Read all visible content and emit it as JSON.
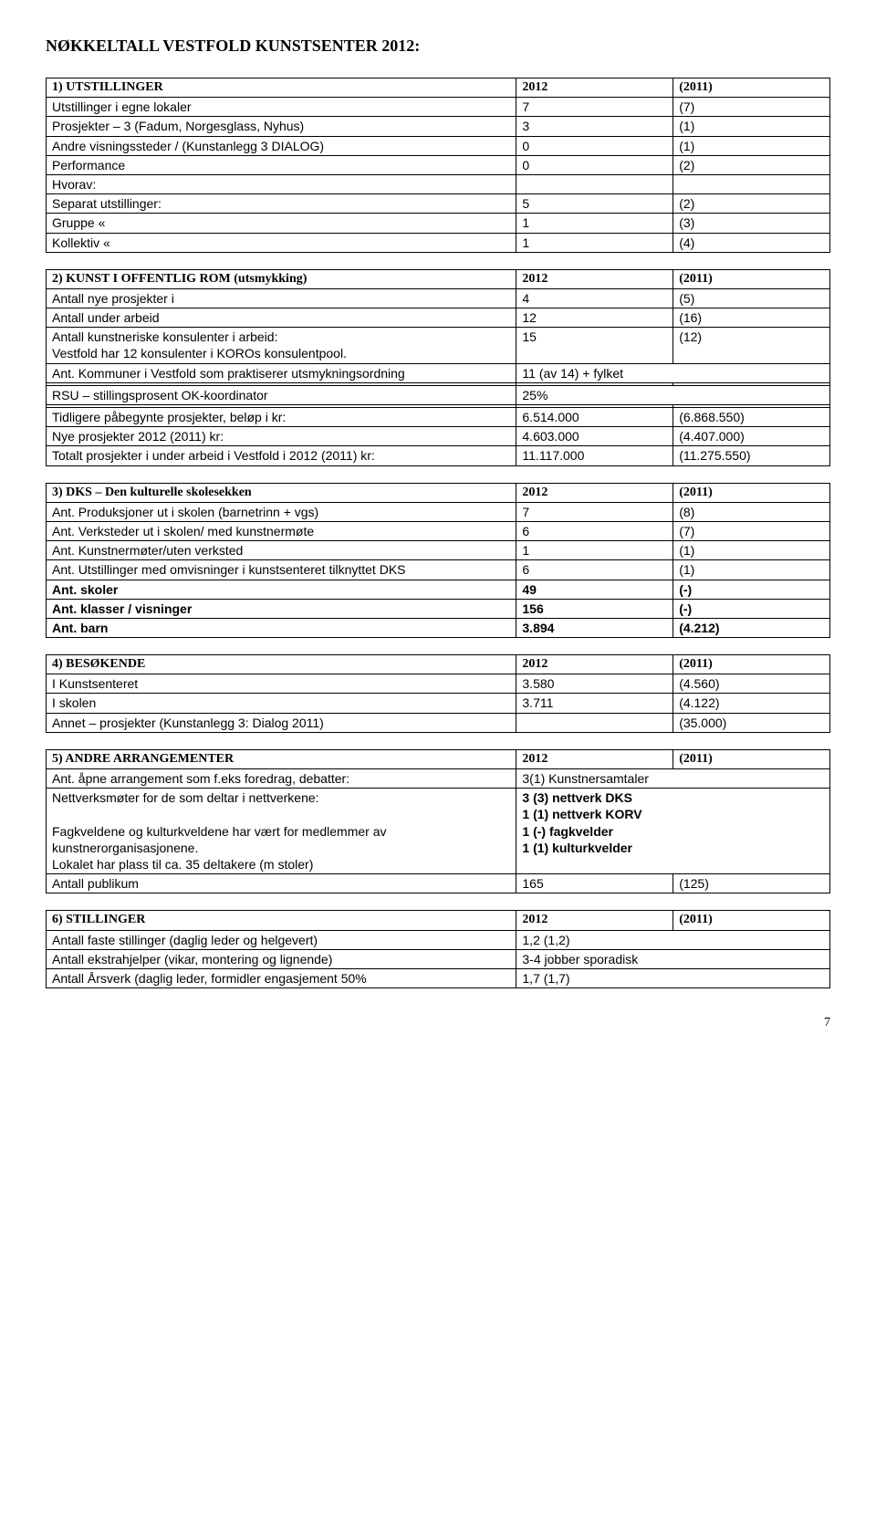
{
  "title": "NØKKELTALL  VESTFOLD  KUNSTSENTER 2012:",
  "table1": {
    "header": {
      "label": "1) UTSTILLINGER",
      "v1": "2012",
      "v2": "(2011)"
    },
    "rows": [
      {
        "label": "Utstillinger i egne lokaler",
        "v1": "7",
        "v2": "(7)"
      },
      {
        "label": "Prosjekter – 3 (Fadum, Norgesglass, Nyhus)",
        "v1": "3",
        "v2": "(1)"
      },
      {
        "label": "Andre visningssteder /  (Kunstanlegg 3 DIALOG)",
        "v1": "0",
        "v2": "(1)"
      },
      {
        "label": "Performance",
        "v1": "0",
        "v2": "(2)"
      },
      {
        "label": "Hvorav:",
        "v1": "",
        "v2": ""
      },
      {
        "label": "Separat utstillinger:",
        "v1": "5",
        "v2": "(2)"
      },
      {
        "label": "Gruppe        «",
        "v1": "1",
        "v2": "(3)"
      },
      {
        "label": "Kollektiv   «",
        "v1": "1",
        "v2": "(4)"
      }
    ]
  },
  "table2": {
    "header": {
      "label": "2) KUNST I OFFENTLIG ROM (utsmykking)",
      "v1": "2012",
      "v2": "(2011)"
    },
    "rows": [
      {
        "label": "Antall nye prosjekter i",
        "v1": "4",
        "v2": "(5)"
      },
      {
        "label": "Antall under arbeid",
        "v1": "12",
        "v2": "(16)"
      },
      {
        "label": "Antall kunstneriske konsulenter i arbeid:\nVestfold har 12 konsulenter i KOROs konsulentpool.",
        "v1": "15",
        "v2": "(12)"
      },
      {
        "label": "Ant. Kommuner i Vestfold som praktiserer utsmykningsordning",
        "v1": "11 (av 14) + fylket",
        "v2": "",
        "span": true
      },
      {
        "label": "",
        "v1": "",
        "v2": ""
      },
      {
        "label": "RSU – stillingsprosent OK-koordinator",
        "v1": "25%",
        "v2": "",
        "span": true
      },
      {
        "label": "",
        "v1": "",
        "v2": ""
      },
      {
        "label": "Tidligere påbegynte prosjekter, beløp i kr:",
        "v1": "6.514.000",
        "v2": "(6.868.550)"
      },
      {
        "label": "Nye prosjekter 2012  (2011) kr:",
        "v1": "4.603.000",
        "v2": "(4.407.000)"
      },
      {
        "label": "Totalt prosjekter i under arbeid i Vestfold i 2012 (2011) kr:",
        "v1": "11.117.000",
        "v2": "(11.275.550)"
      }
    ]
  },
  "table3": {
    "header": {
      "label": "3) DKS – Den kulturelle skolesekken",
      "v1": "2012",
      "v2": "(2011)"
    },
    "rows": [
      {
        "label": "Ant. Produksjoner ut i skolen (barnetrinn + vgs)",
        "v1": "7",
        "v2": "(8)"
      },
      {
        "label": "Ant. Verksteder ut i skolen/ med kunstnermøte",
        "v1": "6",
        "v2": "(7)"
      },
      {
        "label": "Ant. Kunstnermøter/uten verksted",
        "v1": "1",
        "v2": "(1)"
      },
      {
        "label": "Ant. Utstillinger med omvisninger i kunstsenteret tilknyttet DKS",
        "v1": "6",
        "v2": "(1)"
      },
      {
        "label": "Ant. skoler",
        "v1": "49",
        "v2": "(-)",
        "bold": true
      },
      {
        "label": "Ant. klasser / visninger",
        "v1": "156",
        "v2": "(-)",
        "bold": true
      },
      {
        "label": "Ant. barn",
        "v1": "3.894",
        "v2": "(4.212)",
        "bold": true
      }
    ]
  },
  "table4": {
    "header": {
      "label": "4) BESØKENDE",
      "v1": "2012",
      "v2": "(2011)"
    },
    "rows": [
      {
        "label": "I Kunstsenteret",
        "v1": "3.580",
        "v2": "(4.560)"
      },
      {
        "label": "I skolen",
        "v1": "3.711",
        "v2": "(4.122)"
      },
      {
        "label": "Annet – prosjekter (Kunstanlegg 3: Dialog 2011)",
        "v1": "",
        "v2": "(35.000)"
      }
    ]
  },
  "table5": {
    "header": {
      "label": "5) ANDRE ARRANGEMENTER",
      "v1": "2012",
      "v2": "(2011)"
    },
    "rows": [
      {
        "label": "Ant. åpne arrangement som f.eks foredrag, debatter:",
        "v1": "3(1) Kunstnersamtaler",
        "span": true
      },
      {
        "label": "Nettverksmøter for de som deltar i nettverkene:\n\nFagkveldene og kulturkveldene har vært for medlemmer av kunstnerorganisasjonene.\nLokalet har plass til ca. 35 deltakere (m stoler)",
        "v1": "3 (3) nettverk  DKS\n1 (1) nettverk KORV\n1 (-) fagkvelder\n1 (1) kulturkvelder",
        "span": true,
        "boldv": true
      },
      {
        "label": "Antall publikum",
        "v1": "165",
        "v2": "(125)"
      }
    ]
  },
  "table6": {
    "header": {
      "label": "6) STILLINGER",
      "v1": "2012",
      "v2": "(2011)"
    },
    "rows": [
      {
        "label": "Antall faste stillinger (daglig leder og helgevert)",
        "v1": "1,2 (1,2)",
        "span": true
      },
      {
        "label": "Antall ekstrahjelper  (vikar, montering og lignende)",
        "v1": "3-4 jobber sporadisk",
        "span": true
      },
      {
        "label": "Antall Årsverk  (daglig leder, formidler engasjement 50%",
        "v1": "1,7 (1,7)",
        "span": true
      }
    ]
  },
  "pagenum": "7"
}
